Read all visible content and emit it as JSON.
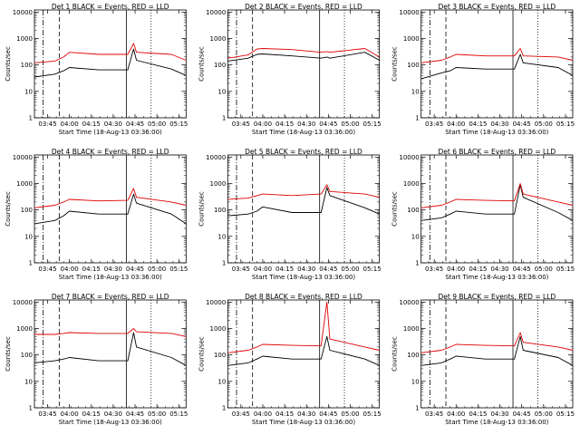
{
  "colors": {
    "events": "#000000",
    "lld": "#e00000",
    "axes": "#000000",
    "background": "#ffffff"
  },
  "common": {
    "xlabel": "Start Time (18-Aug-13 03:36:00)",
    "ylabel": "Counts/sec",
    "x_ticks": [
      "03:45",
      "04:00",
      "04:15",
      "04:30",
      "04:45",
      "05:00",
      "05:15"
    ],
    "y_ticks": [
      "1",
      "10",
      "100",
      "1000",
      "10000"
    ]
  },
  "chart_data": [
    {
      "type": "line",
      "title": "Det  1  BLACK = Events, RED = LLD",
      "xlim": [
        "03:36",
        "05:20"
      ],
      "ylim": [
        1,
        12000
      ],
      "yscale": "log",
      "vlines": [
        {
          "x": "03:42",
          "style": "dashdot"
        },
        {
          "x": "03:53",
          "style": "dashed"
        },
        {
          "x": "04:39",
          "style": "solid"
        },
        {
          "x": "04:56",
          "style": "dotted"
        }
      ],
      "series": [
        {
          "color": "#000000",
          "x": [
            "03:36",
            "03:50",
            "03:56",
            "04:00",
            "04:20",
            "04:40",
            "04:44",
            "04:46",
            "05:10",
            "05:20"
          ],
          "values": [
            35,
            45,
            60,
            80,
            65,
            65,
            400,
            150,
            70,
            40
          ]
        },
        {
          "color": "#e00000",
          "x": [
            "03:36",
            "03:50",
            "03:56",
            "04:00",
            "04:20",
            "04:40",
            "04:44",
            "04:46",
            "05:10",
            "05:20"
          ],
          "values": [
            120,
            140,
            200,
            300,
            250,
            250,
            650,
            300,
            250,
            150
          ]
        }
      ]
    },
    {
      "type": "line",
      "title": "Det  2  BLACK = Events, RED = LLD",
      "xlim": [
        "03:36",
        "05:20"
      ],
      "ylim": [
        1,
        12000
      ],
      "yscale": "log",
      "vlines": [
        {
          "x": "03:42",
          "style": "dashdot"
        },
        {
          "x": "03:53",
          "style": "dashed"
        },
        {
          "x": "04:39",
          "style": "solid"
        },
        {
          "x": "04:56",
          "style": "dotted"
        }
      ],
      "series": [
        {
          "color": "#000000",
          "x": [
            "03:36",
            "03:50",
            "03:56",
            "04:00",
            "04:20",
            "04:40",
            "04:44",
            "04:46",
            "05:10",
            "05:20"
          ],
          "values": [
            140,
            180,
            250,
            260,
            220,
            180,
            200,
            180,
            300,
            150
          ]
        },
        {
          "color": "#e00000",
          "x": [
            "03:36",
            "03:50",
            "03:56",
            "04:00",
            "04:20",
            "04:40",
            "04:44",
            "04:46",
            "05:10",
            "05:20"
          ],
          "values": [
            180,
            240,
            400,
            420,
            380,
            300,
            320,
            300,
            420,
            200
          ]
        }
      ]
    },
    {
      "type": "line",
      "title": "Det  3  BLACK = Events, RED = LLD",
      "xlim": [
        "03:36",
        "05:20"
      ],
      "ylim": [
        1,
        12000
      ],
      "yscale": "log",
      "vlines": [
        {
          "x": "03:42",
          "style": "dashdot"
        },
        {
          "x": "03:53",
          "style": "dashed"
        },
        {
          "x": "04:39",
          "style": "solid"
        },
        {
          "x": "04:56",
          "style": "dotted"
        }
      ],
      "series": [
        {
          "color": "#000000",
          "x": [
            "03:36",
            "03:50",
            "03:56",
            "04:00",
            "04:20",
            "04:40",
            "04:44",
            "04:46",
            "05:10",
            "05:20"
          ],
          "values": [
            30,
            50,
            60,
            80,
            70,
            70,
            250,
            120,
            80,
            40
          ]
        },
        {
          "color": "#e00000",
          "x": [
            "03:36",
            "03:50",
            "03:56",
            "04:00",
            "04:20",
            "04:40",
            "04:44",
            "04:46",
            "05:10",
            "05:20"
          ],
          "values": [
            120,
            150,
            200,
            250,
            220,
            220,
            420,
            220,
            200,
            150
          ]
        }
      ]
    },
    {
      "type": "line",
      "title": "Det  4  BLACK = Events, RED = LLD",
      "xlim": [
        "03:36",
        "05:20"
      ],
      "ylim": [
        1,
        12000
      ],
      "yscale": "log",
      "vlines": [
        {
          "x": "03:42",
          "style": "dashdot"
        },
        {
          "x": "03:53",
          "style": "dashed"
        },
        {
          "x": "04:39",
          "style": "solid"
        },
        {
          "x": "04:56",
          "style": "dotted"
        }
      ],
      "series": [
        {
          "color": "#000000",
          "x": [
            "03:36",
            "03:50",
            "03:56",
            "04:00",
            "04:20",
            "04:40",
            "04:44",
            "04:46",
            "05:10",
            "05:20"
          ],
          "values": [
            30,
            40,
            60,
            90,
            70,
            70,
            400,
            180,
            70,
            30
          ]
        },
        {
          "color": "#e00000",
          "x": [
            "03:36",
            "03:50",
            "03:56",
            "04:00",
            "04:20",
            "04:40",
            "04:44",
            "04:46",
            "05:10",
            "05:20"
          ],
          "values": [
            120,
            150,
            200,
            250,
            220,
            230,
            650,
            300,
            200,
            150
          ]
        }
      ]
    },
    {
      "type": "line",
      "title": "Det  5  BLACK = Events, RED = LLD",
      "xlim": [
        "03:36",
        "05:20"
      ],
      "ylim": [
        1,
        12000
      ],
      "yscale": "log",
      "vlines": [
        {
          "x": "03:42",
          "style": "dashdot"
        },
        {
          "x": "03:53",
          "style": "dashed"
        },
        {
          "x": "04:39",
          "style": "solid"
        },
        {
          "x": "04:56",
          "style": "dotted"
        }
      ],
      "series": [
        {
          "color": "#000000",
          "x": [
            "03:36",
            "03:50",
            "03:56",
            "04:00",
            "04:20",
            "04:40",
            "04:44",
            "04:46",
            "05:10",
            "05:20"
          ],
          "values": [
            60,
            70,
            90,
            130,
            80,
            80,
            700,
            350,
            120,
            70
          ]
        },
        {
          "color": "#e00000",
          "x": [
            "03:36",
            "03:50",
            "03:56",
            "04:00",
            "04:20",
            "04:40",
            "04:44",
            "04:46",
            "05:10",
            "05:20"
          ],
          "values": [
            250,
            280,
            350,
            400,
            350,
            400,
            900,
            500,
            400,
            300
          ]
        }
      ]
    },
    {
      "type": "line",
      "title": "Det  6  BLACK = Events, RED = LLD",
      "xlim": [
        "03:36",
        "05:20"
      ],
      "ylim": [
        1,
        12000
      ],
      "yscale": "log",
      "vlines": [
        {
          "x": "03:42",
          "style": "dashdot"
        },
        {
          "x": "03:53",
          "style": "dashed"
        },
        {
          "x": "04:39",
          "style": "solid"
        },
        {
          "x": "04:56",
          "style": "dotted"
        }
      ],
      "series": [
        {
          "color": "#000000",
          "x": [
            "03:36",
            "03:50",
            "03:56",
            "04:00",
            "04:20",
            "04:40",
            "04:44",
            "04:46",
            "05:10",
            "05:20"
          ],
          "values": [
            40,
            50,
            70,
            90,
            70,
            70,
            900,
            300,
            80,
            40
          ]
        },
        {
          "color": "#e00000",
          "x": [
            "03:36",
            "03:50",
            "03:56",
            "04:00",
            "04:20",
            "04:40",
            "04:44",
            "04:46",
            "05:10",
            "05:20"
          ],
          "values": [
            120,
            150,
            200,
            250,
            230,
            220,
            1000,
            400,
            200,
            150
          ]
        }
      ]
    },
    {
      "type": "line",
      "title": "Det  7  BLACK = Events, RED = LLD",
      "xlim": [
        "03:36",
        "05:20"
      ],
      "ylim": [
        1,
        12000
      ],
      "yscale": "log",
      "vlines": [
        {
          "x": "03:42",
          "style": "dashdot"
        },
        {
          "x": "03:53",
          "style": "dashed"
        },
        {
          "x": "04:39",
          "style": "solid"
        },
        {
          "x": "04:56",
          "style": "dotted"
        }
      ],
      "series": [
        {
          "color": "#000000",
          "x": [
            "03:36",
            "03:50",
            "03:56",
            "04:00",
            "04:20",
            "04:40",
            "04:44",
            "04:46",
            "05:10",
            "05:20"
          ],
          "values": [
            50,
            60,
            70,
            80,
            60,
            60,
            700,
            200,
            80,
            40
          ]
        },
        {
          "color": "#e00000",
          "x": [
            "03:36",
            "03:50",
            "03:56",
            "04:00",
            "04:20",
            "04:40",
            "04:44",
            "04:46",
            "05:10",
            "05:20"
          ],
          "values": [
            600,
            600,
            650,
            700,
            650,
            650,
            1000,
            750,
            650,
            500
          ]
        }
      ]
    },
    {
      "type": "line",
      "title": "Det  8  BLACK = Events, RED = LLD",
      "xlim": [
        "03:36",
        "05:20"
      ],
      "ylim": [
        1,
        12000
      ],
      "yscale": "log",
      "vlines": [
        {
          "x": "03:42",
          "style": "dashdot"
        },
        {
          "x": "03:53",
          "style": "dashed"
        },
        {
          "x": "04:39",
          "style": "solid"
        },
        {
          "x": "04:56",
          "style": "dotted"
        }
      ],
      "series": [
        {
          "color": "#000000",
          "x": [
            "03:36",
            "03:50",
            "03:56",
            "04:00",
            "04:20",
            "04:40",
            "04:44",
            "04:46",
            "05:10",
            "05:20"
          ],
          "values": [
            40,
            50,
            70,
            90,
            70,
            70,
            500,
            150,
            70,
            40
          ]
        },
        {
          "color": "#e00000",
          "x": [
            "03:36",
            "03:50",
            "03:56",
            "04:00",
            "04:20",
            "04:40",
            "04:44",
            "04:46",
            "05:10",
            "05:20"
          ],
          "values": [
            120,
            150,
            200,
            250,
            230,
            220,
            10000,
            400,
            200,
            150
          ]
        }
      ]
    },
    {
      "type": "line",
      "title": "Det  9  BLACK = Events, RED = LLD",
      "xlim": [
        "03:36",
        "05:20"
      ],
      "ylim": [
        1,
        12000
      ],
      "yscale": "log",
      "vlines": [
        {
          "x": "03:42",
          "style": "dashdot"
        },
        {
          "x": "03:53",
          "style": "dashed"
        },
        {
          "x": "04:39",
          "style": "solid"
        },
        {
          "x": "04:56",
          "style": "dotted"
        }
      ],
      "series": [
        {
          "color": "#000000",
          "x": [
            "03:36",
            "03:50",
            "03:56",
            "04:00",
            "04:20",
            "04:40",
            "04:44",
            "04:46",
            "05:10",
            "05:20"
          ],
          "values": [
            40,
            50,
            70,
            90,
            70,
            70,
            500,
            150,
            80,
            40
          ]
        },
        {
          "color": "#e00000",
          "x": [
            "03:36",
            "03:50",
            "03:56",
            "04:00",
            "04:20",
            "04:40",
            "04:44",
            "04:46",
            "05:10",
            "05:20"
          ],
          "values": [
            120,
            150,
            200,
            250,
            230,
            220,
            700,
            300,
            200,
            150
          ]
        }
      ]
    }
  ]
}
